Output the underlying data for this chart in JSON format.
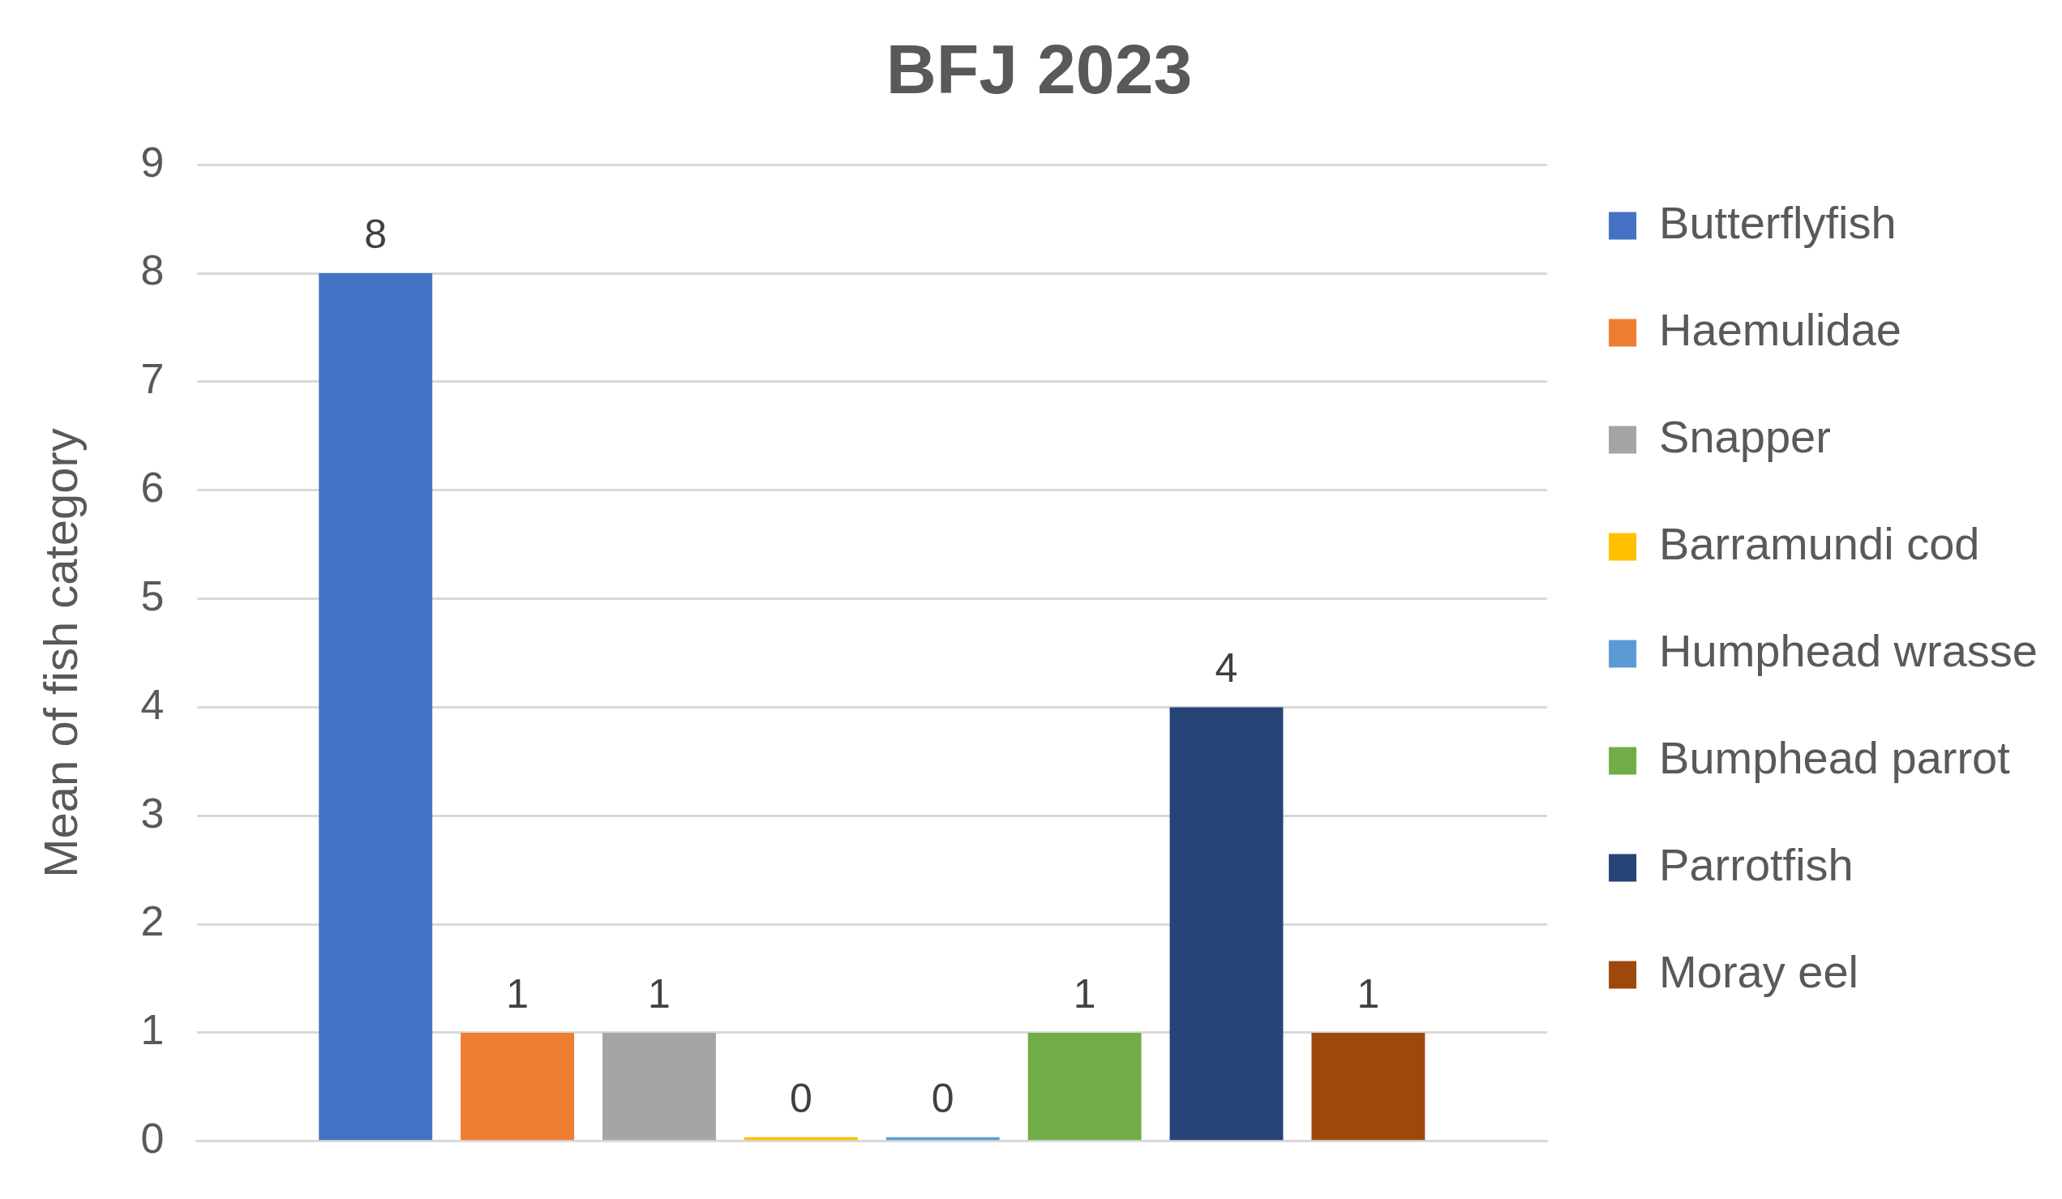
{
  "chart_data": {
    "type": "bar",
    "title": "BFJ 2023",
    "ylabel": "Mean of fish category",
    "categories": [
      null
    ],
    "series": [
      {
        "name": "Butterflyfish",
        "color": "#4472c4",
        "values": [
          8
        ]
      },
      {
        "name": "Haemulidae",
        "color": "#ed7d31",
        "values": [
          1
        ]
      },
      {
        "name": "Snapper",
        "color": "#a5a5a5",
        "values": [
          1
        ]
      },
      {
        "name": "Barramundi cod",
        "color": "#ffc000",
        "values": [
          0
        ]
      },
      {
        "name": "Humphead wrasse",
        "color": "#5b9bd5",
        "values": [
          0
        ]
      },
      {
        "name": "Bumphead parrot",
        "color": "#70ad47",
        "values": [
          1
        ]
      },
      {
        "name": "Parrotfish",
        "color": "#264478",
        "values": [
          4
        ]
      },
      {
        "name": "Moray eel",
        "color": "#9e480e",
        "values": [
          1
        ]
      }
    ],
    "ylim": [
      0,
      9
    ],
    "yticks": [
      0,
      1,
      2,
      3,
      4,
      5,
      6,
      7,
      8,
      9
    ],
    "grid": "y",
    "legend": "right",
    "data_labels": true,
    "tick_labels": "y"
  }
}
